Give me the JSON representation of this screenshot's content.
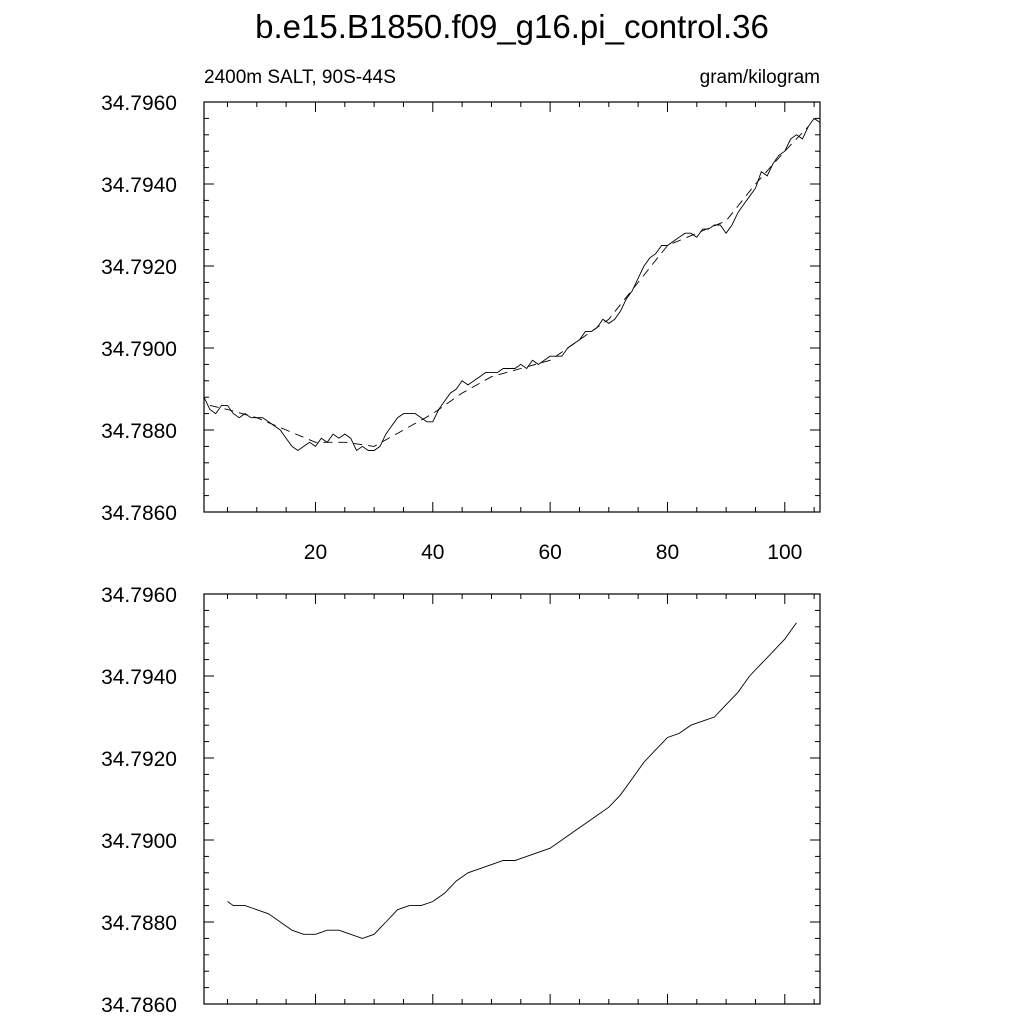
{
  "figure": {
    "title": "b.e15.B1850.f09_g16.pi_control.36"
  },
  "chart_data": [
    {
      "type": "line",
      "panel": "top",
      "left_label": "2400m SALT, 90S-44S",
      "right_label": "gram/kilogram",
      "xlim": [
        1,
        106
      ],
      "ylim": [
        34.786,
        34.796
      ],
      "x_ticks": [
        20,
        40,
        60,
        80,
        100
      ],
      "x_tick_labels": [
        "20",
        "40",
        "60",
        "80",
        "100"
      ],
      "y_ticks": [
        34.786,
        34.788,
        34.79,
        34.792,
        34.794,
        34.796
      ],
      "y_tick_labels": [
        "34.7860",
        "34.7880",
        "34.7900",
        "34.7920",
        "34.7940",
        "34.7960"
      ],
      "grid": false,
      "series": [
        {
          "style": "solid",
          "x": [
            1,
            2,
            3,
            4,
            5,
            6,
            7,
            8,
            9,
            10,
            11,
            12,
            13,
            14,
            15,
            16,
            17,
            18,
            19,
            20,
            21,
            22,
            23,
            24,
            25,
            26,
            27,
            28,
            29,
            30,
            31,
            32,
            33,
            34,
            35,
            36,
            37,
            38,
            39,
            40,
            41,
            42,
            43,
            44,
            45,
            46,
            47,
            48,
            49,
            50,
            51,
            52,
            53,
            54,
            55,
            56,
            57,
            58,
            59,
            60,
            61,
            62,
            63,
            64,
            65,
            66,
            67,
            68,
            69,
            70,
            71,
            72,
            73,
            74,
            75,
            76,
            77,
            78,
            79,
            80,
            81,
            82,
            83,
            84,
            85,
            86,
            87,
            88,
            89,
            90,
            91,
            92,
            93,
            94,
            95,
            96,
            97,
            98,
            99,
            100,
            101,
            102,
            103,
            104,
            105,
            106
          ],
          "values": [
            34.7888,
            34.7885,
            34.7884,
            34.7886,
            34.7886,
            34.7884,
            34.7883,
            34.7884,
            34.7883,
            34.7883,
            34.7883,
            34.7882,
            34.7881,
            34.788,
            34.7878,
            34.7876,
            34.7875,
            34.7876,
            34.7877,
            34.7876,
            34.7878,
            34.7877,
            34.7879,
            34.7878,
            34.7879,
            34.7878,
            34.7875,
            34.7876,
            34.7875,
            34.7875,
            34.7876,
            34.7879,
            34.7881,
            34.7883,
            34.7884,
            34.7884,
            34.7884,
            34.7883,
            34.7882,
            34.7882,
            34.7885,
            34.7887,
            34.7889,
            34.789,
            34.7892,
            34.7891,
            34.7892,
            34.7893,
            34.7894,
            34.7894,
            34.7894,
            34.7895,
            34.7895,
            34.7895,
            34.7896,
            34.7895,
            34.7897,
            34.7896,
            34.7897,
            34.7898,
            34.7898,
            34.7898,
            34.79,
            34.7901,
            34.7902,
            34.7904,
            34.7904,
            34.7905,
            34.7907,
            34.7906,
            34.7907,
            34.7909,
            34.7912,
            34.7914,
            34.7917,
            34.792,
            34.7922,
            34.7923,
            34.7925,
            34.7925,
            34.7926,
            34.7927,
            34.7928,
            34.7928,
            34.7927,
            34.7929,
            34.7929,
            34.793,
            34.793,
            34.7928,
            34.793,
            34.7933,
            34.7935,
            34.7937,
            34.7939,
            34.7943,
            34.7942,
            34.7945,
            34.7947,
            34.7948,
            34.7951,
            34.7952,
            34.7951,
            34.7954,
            34.7956,
            34.7955
          ]
        },
        {
          "style": "dashed",
          "x": [
            2,
            5,
            10,
            15,
            20,
            25,
            30,
            35,
            40,
            45,
            50,
            55,
            60,
            65,
            70,
            75,
            80,
            85,
            90,
            95,
            100,
            104
          ],
          "values": [
            34.7886,
            34.7885,
            34.7883,
            34.788,
            34.7877,
            34.7877,
            34.7876,
            34.788,
            34.7884,
            34.7889,
            34.7893,
            34.7895,
            34.7897,
            34.7902,
            34.7907,
            34.7916,
            34.7925,
            34.7928,
            34.7931,
            34.794,
            34.7948,
            34.7954
          ]
        }
      ]
    },
    {
      "type": "line",
      "panel": "bottom",
      "xlim": [
        1,
        106
      ],
      "ylim": [
        34.786,
        34.796
      ],
      "x_ticks": [
        20,
        40,
        60,
        80,
        100
      ],
      "y_ticks": [
        34.786,
        34.788,
        34.79,
        34.792,
        34.794,
        34.796
      ],
      "y_tick_labels": [
        "34.7860",
        "34.7880",
        "34.7900",
        "34.7920",
        "34.7940",
        "34.7960"
      ],
      "grid": false,
      "series": [
        {
          "style": "solid",
          "x": [
            5,
            6,
            8,
            10,
            12,
            14,
            16,
            18,
            20,
            22,
            24,
            26,
            28,
            30,
            32,
            34,
            36,
            38,
            40,
            42,
            44,
            46,
            48,
            50,
            52,
            54,
            56,
            58,
            60,
            62,
            64,
            66,
            68,
            70,
            72,
            74,
            76,
            78,
            80,
            82,
            84,
            86,
            88,
            90,
            92,
            94,
            96,
            98,
            100,
            102
          ],
          "values": [
            34.7885,
            34.7884,
            34.7884,
            34.7883,
            34.7882,
            34.788,
            34.7878,
            34.7877,
            34.7877,
            34.7878,
            34.7878,
            34.7877,
            34.7876,
            34.7877,
            34.788,
            34.7883,
            34.7884,
            34.7884,
            34.7885,
            34.7887,
            34.789,
            34.7892,
            34.7893,
            34.7894,
            34.7895,
            34.7895,
            34.7896,
            34.7897,
            34.7898,
            34.79,
            34.7902,
            34.7904,
            34.7906,
            34.7908,
            34.7911,
            34.7915,
            34.7919,
            34.7922,
            34.7925,
            34.7926,
            34.7928,
            34.7929,
            34.793,
            34.7933,
            34.7936,
            34.794,
            34.7943,
            34.7946,
            34.7949,
            34.7953
          ]
        }
      ]
    }
  ]
}
